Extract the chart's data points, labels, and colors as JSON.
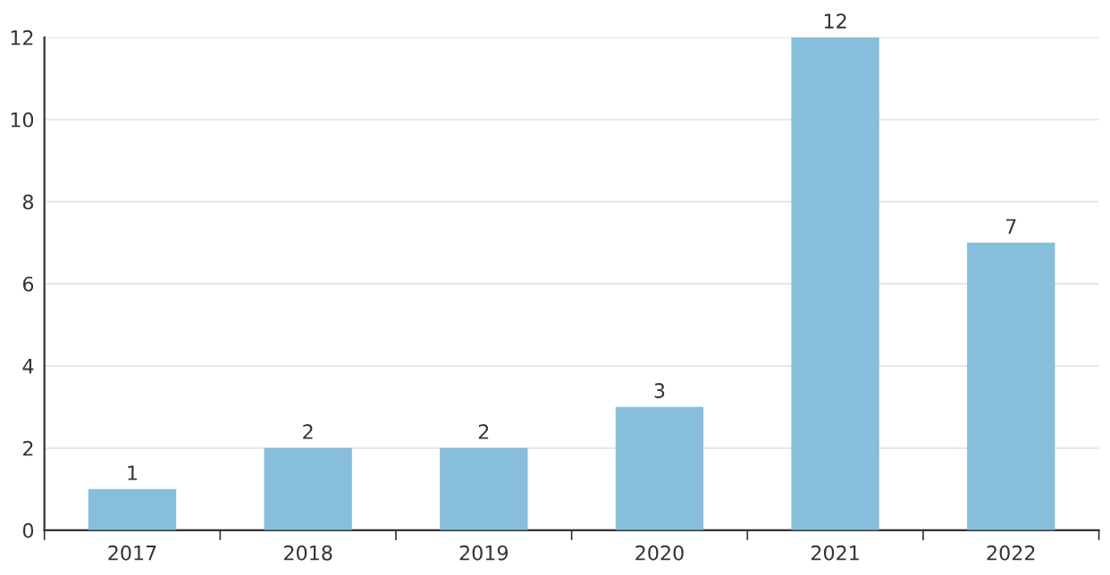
{
  "chart_data": {
    "type": "bar",
    "categories": [
      "2017",
      "2018",
      "2019",
      "2020",
      "2021",
      "2022"
    ],
    "values": [
      1,
      2,
      2,
      3,
      12,
      7
    ],
    "color": "#86bedb",
    "ylim": [
      0,
      12
    ],
    "yticks": [
      0,
      2,
      4,
      6,
      8,
      10,
      12
    ],
    "grid": "y",
    "data_labels": true
  }
}
